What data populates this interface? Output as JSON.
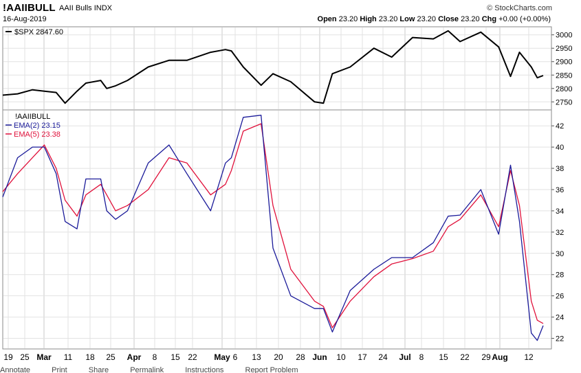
{
  "header": {
    "symbol": "!AAIIBULL",
    "description": "AAII Bulls INDX",
    "date": "16-Aug-2019",
    "brand": "© StockCharts.com",
    "open_label": "Open",
    "open_value": "23.20",
    "high_label": "High",
    "high_value": "23.20",
    "low_label": "Low",
    "low_value": "23.20",
    "close_label": "Close",
    "close_value": "23.20",
    "chg_label": "Chg",
    "chg_value": "+0.00 (+0.00%)"
  },
  "footer": {
    "items": [
      "Annotate",
      "Print",
      "Share",
      "Permalink",
      "Instructions",
      "Report Problem"
    ]
  },
  "chart_data": [
    {
      "type": "line",
      "title": "",
      "legend": [
        {
          "name": "$SPX 2847.60",
          "color": "#000000"
        }
      ],
      "ylim": [
        2720,
        3030
      ],
      "yticks": [
        2750,
        2800,
        2850,
        2900,
        2950,
        3000
      ],
      "grid": true,
      "series": [
        {
          "name": "$SPX 2847.60",
          "color": "#000000",
          "x": [
            "2019-02-15",
            "2019-02-20",
            "2019-02-25",
            "2019-03-01",
            "2019-03-05",
            "2019-03-08",
            "2019-03-12",
            "2019-03-15",
            "2019-03-20",
            "2019-03-22",
            "2019-03-25",
            "2019-03-29",
            "2019-04-05",
            "2019-04-12",
            "2019-04-18",
            "2019-04-26",
            "2019-05-01",
            "2019-05-03",
            "2019-05-07",
            "2019-05-13",
            "2019-05-17",
            "2019-05-23",
            "2019-05-31",
            "2019-06-03",
            "2019-06-06",
            "2019-06-12",
            "2019-06-20",
            "2019-06-26",
            "2019-07-03",
            "2019-07-10",
            "2019-07-15",
            "2019-07-19",
            "2019-07-26",
            "2019-08-01",
            "2019-08-05",
            "2019-08-08",
            "2019-08-12",
            "2019-08-14",
            "2019-08-16"
          ],
          "values": [
            2775,
            2780,
            2795,
            2790,
            2785,
            2745,
            2790,
            2820,
            2830,
            2800,
            2810,
            2830,
            2880,
            2905,
            2905,
            2935,
            2945,
            2940,
            2880,
            2812,
            2855,
            2825,
            2750,
            2745,
            2855,
            2880,
            2950,
            2917,
            2990,
            2985,
            3015,
            2975,
            3010,
            2955,
            2845,
            2935,
            2880,
            2840,
            2848
          ]
        }
      ]
    },
    {
      "type": "line",
      "title": "!AAIIBULL",
      "legend": [
        {
          "name": "EMA(2) 23.15",
          "color": "#1a1a99"
        },
        {
          "name": "EMA(5) 23.38",
          "color": "#e0103a"
        }
      ],
      "ylim": [
        21,
        43.5
      ],
      "yticks": [
        22,
        24,
        26,
        28,
        30,
        32,
        34,
        36,
        38,
        40,
        42
      ],
      "xticks": [
        "19",
        "25",
        "Mar",
        "11",
        "18",
        "25",
        "Apr",
        "8",
        "15",
        "22",
        "May",
        "6",
        "13",
        "20",
        "28",
        "Jun",
        "10",
        "17",
        "24",
        "Jul",
        "8",
        "15",
        "22",
        "29",
        "Aug",
        "12"
      ],
      "grid": true,
      "series": [
        {
          "name": "EMA(2) 23.15",
          "color": "#1a1a99",
          "x": [
            "2019-02-15",
            "2019-02-20",
            "2019-02-25",
            "2019-03-01",
            "2019-03-05",
            "2019-03-08",
            "2019-03-12",
            "2019-03-15",
            "2019-03-20",
            "2019-03-22",
            "2019-03-25",
            "2019-03-29",
            "2019-04-05",
            "2019-04-12",
            "2019-04-18",
            "2019-04-26",
            "2019-05-01",
            "2019-05-03",
            "2019-05-07",
            "2019-05-13",
            "2019-05-17",
            "2019-05-23",
            "2019-05-31",
            "2019-06-03",
            "2019-06-06",
            "2019-06-12",
            "2019-06-20",
            "2019-06-26",
            "2019-07-03",
            "2019-07-10",
            "2019-07-15",
            "2019-07-19",
            "2019-07-26",
            "2019-08-01",
            "2019-08-05",
            "2019-08-08",
            "2019-08-12",
            "2019-08-14",
            "2019-08-16"
          ],
          "values": [
            35.3,
            39.0,
            40.0,
            40.0,
            37.5,
            33.0,
            32.3,
            37.0,
            37.0,
            34.0,
            33.2,
            34.0,
            38.5,
            40.2,
            37.5,
            34.0,
            38.5,
            39.0,
            42.8,
            43.0,
            30.5,
            26.0,
            24.8,
            24.8,
            22.6,
            26.5,
            28.5,
            29.6,
            29.6,
            31.0,
            33.5,
            33.6,
            36.0,
            31.8,
            38.3,
            33.0,
            22.5,
            21.8,
            23.2
          ]
        },
        {
          "name": "EMA(5) 23.38",
          "color": "#e0103a",
          "x": [
            "2019-02-15",
            "2019-02-20",
            "2019-02-25",
            "2019-03-01",
            "2019-03-05",
            "2019-03-08",
            "2019-03-12",
            "2019-03-15",
            "2019-03-20",
            "2019-03-22",
            "2019-03-25",
            "2019-03-29",
            "2019-04-05",
            "2019-04-12",
            "2019-04-18",
            "2019-04-26",
            "2019-05-01",
            "2019-05-03",
            "2019-05-07",
            "2019-05-13",
            "2019-05-17",
            "2019-05-23",
            "2019-05-31",
            "2019-06-03",
            "2019-06-06",
            "2019-06-12",
            "2019-06-20",
            "2019-06-26",
            "2019-07-03",
            "2019-07-10",
            "2019-07-15",
            "2019-07-19",
            "2019-07-26",
            "2019-08-01",
            "2019-08-05",
            "2019-08-08",
            "2019-08-12",
            "2019-08-14",
            "2019-08-16"
          ],
          "values": [
            35.8,
            37.5,
            39.0,
            40.2,
            38.0,
            35.0,
            33.5,
            35.5,
            36.5,
            35.5,
            34.0,
            34.5,
            36.0,
            39.0,
            38.5,
            35.5,
            36.5,
            37.8,
            41.5,
            42.2,
            34.5,
            28.5,
            25.5,
            25.0,
            23.0,
            25.5,
            27.8,
            29.0,
            29.5,
            30.2,
            32.5,
            33.2,
            35.5,
            32.5,
            37.8,
            34.5,
            25.5,
            23.7,
            23.4
          ]
        }
      ]
    }
  ]
}
